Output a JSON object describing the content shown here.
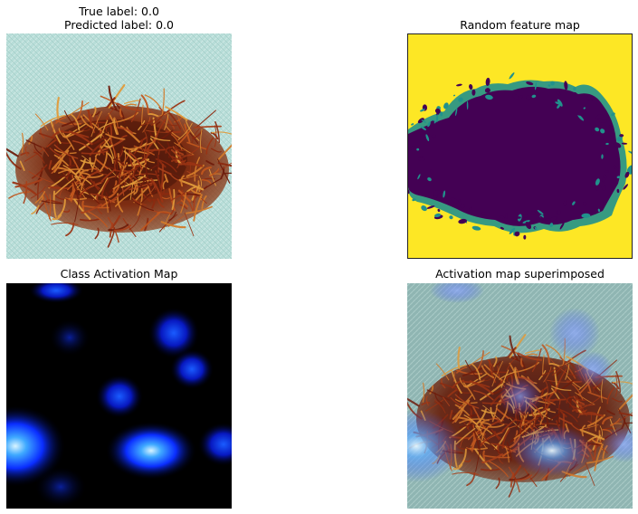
{
  "panels": {
    "original": {
      "title_line1": "True label: 0.0",
      "title_line2": "Predicted label: 0.0"
    },
    "feature_map": {
      "title": "Random feature map"
    },
    "cam": {
      "title": "Class Activation Map"
    },
    "superimposed": {
      "title": "Activation map superimposed"
    }
  },
  "colors": {
    "cloth": "#b6dcd7",
    "threads": "#7a2a12",
    "viridis_low": "#440154",
    "viridis_mid": "#21918c",
    "viridis_high": "#fde725",
    "cam_background": "#000000",
    "cam_hot": "#0a3cff"
  }
}
